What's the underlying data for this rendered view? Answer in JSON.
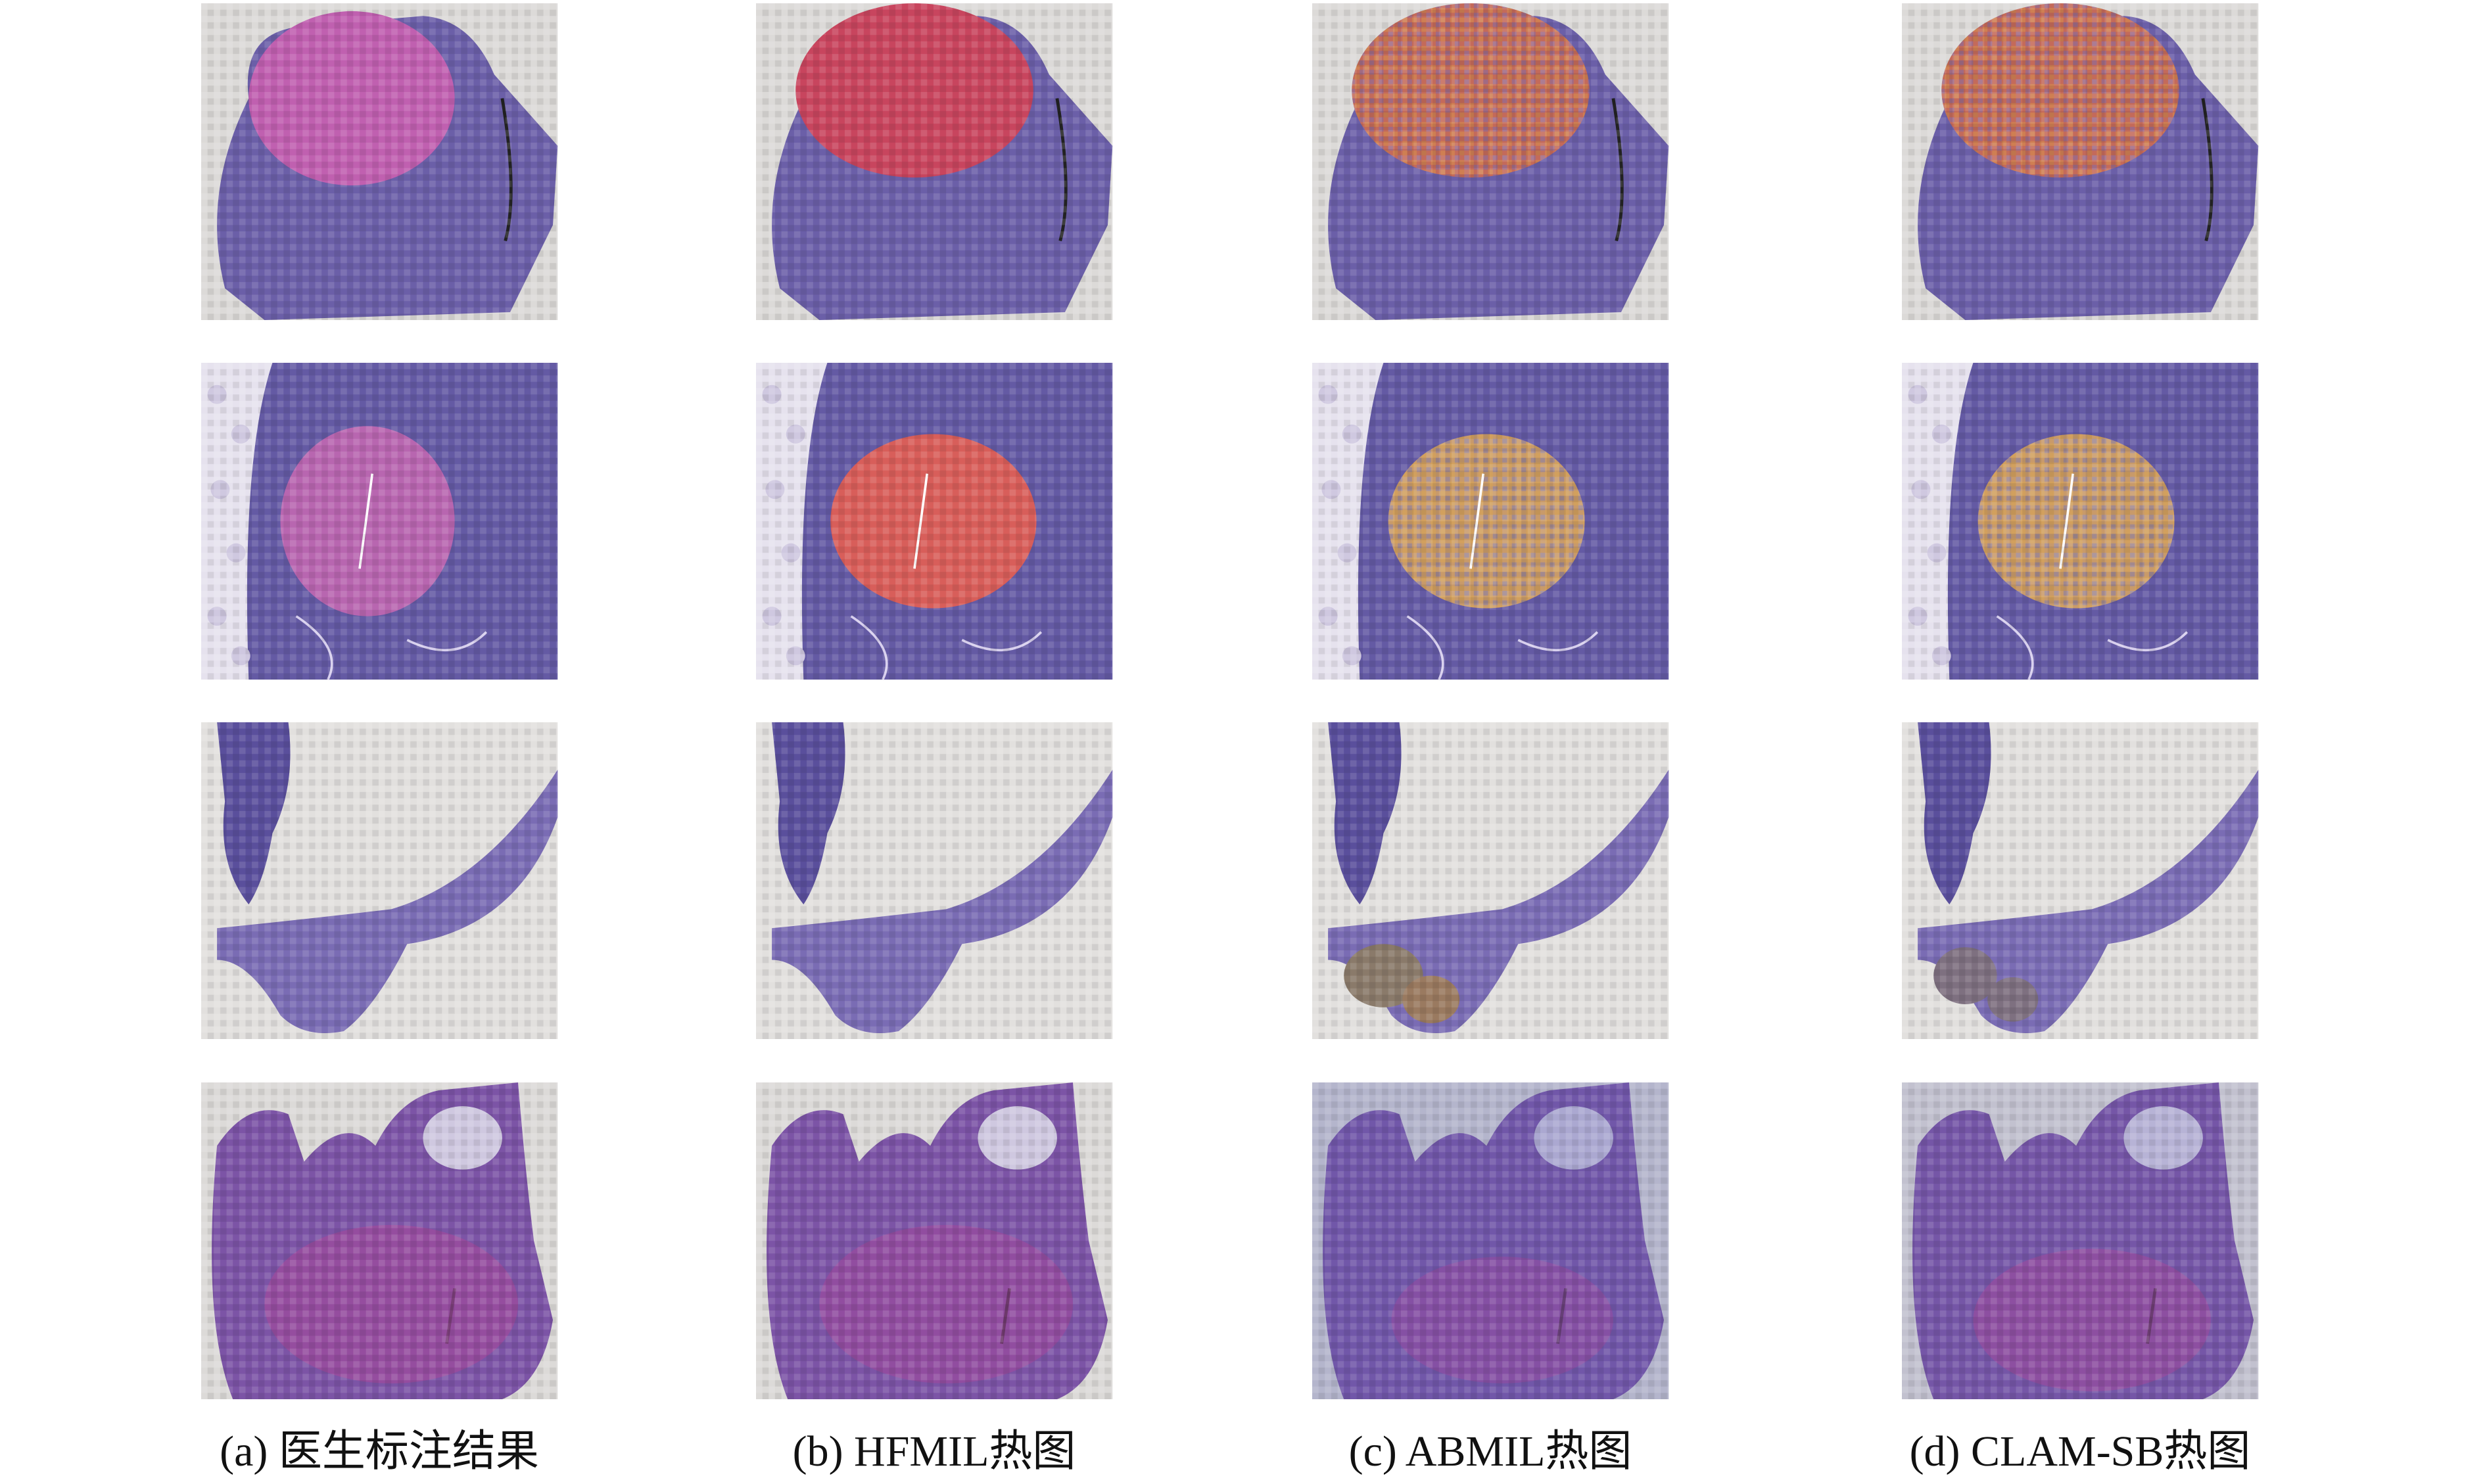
{
  "captions": [
    "(a) 医生标注结果",
    "(b) HFMIL热图",
    "(c) ABMIL热图",
    "(d) CLAM-SB热图"
  ]
}
